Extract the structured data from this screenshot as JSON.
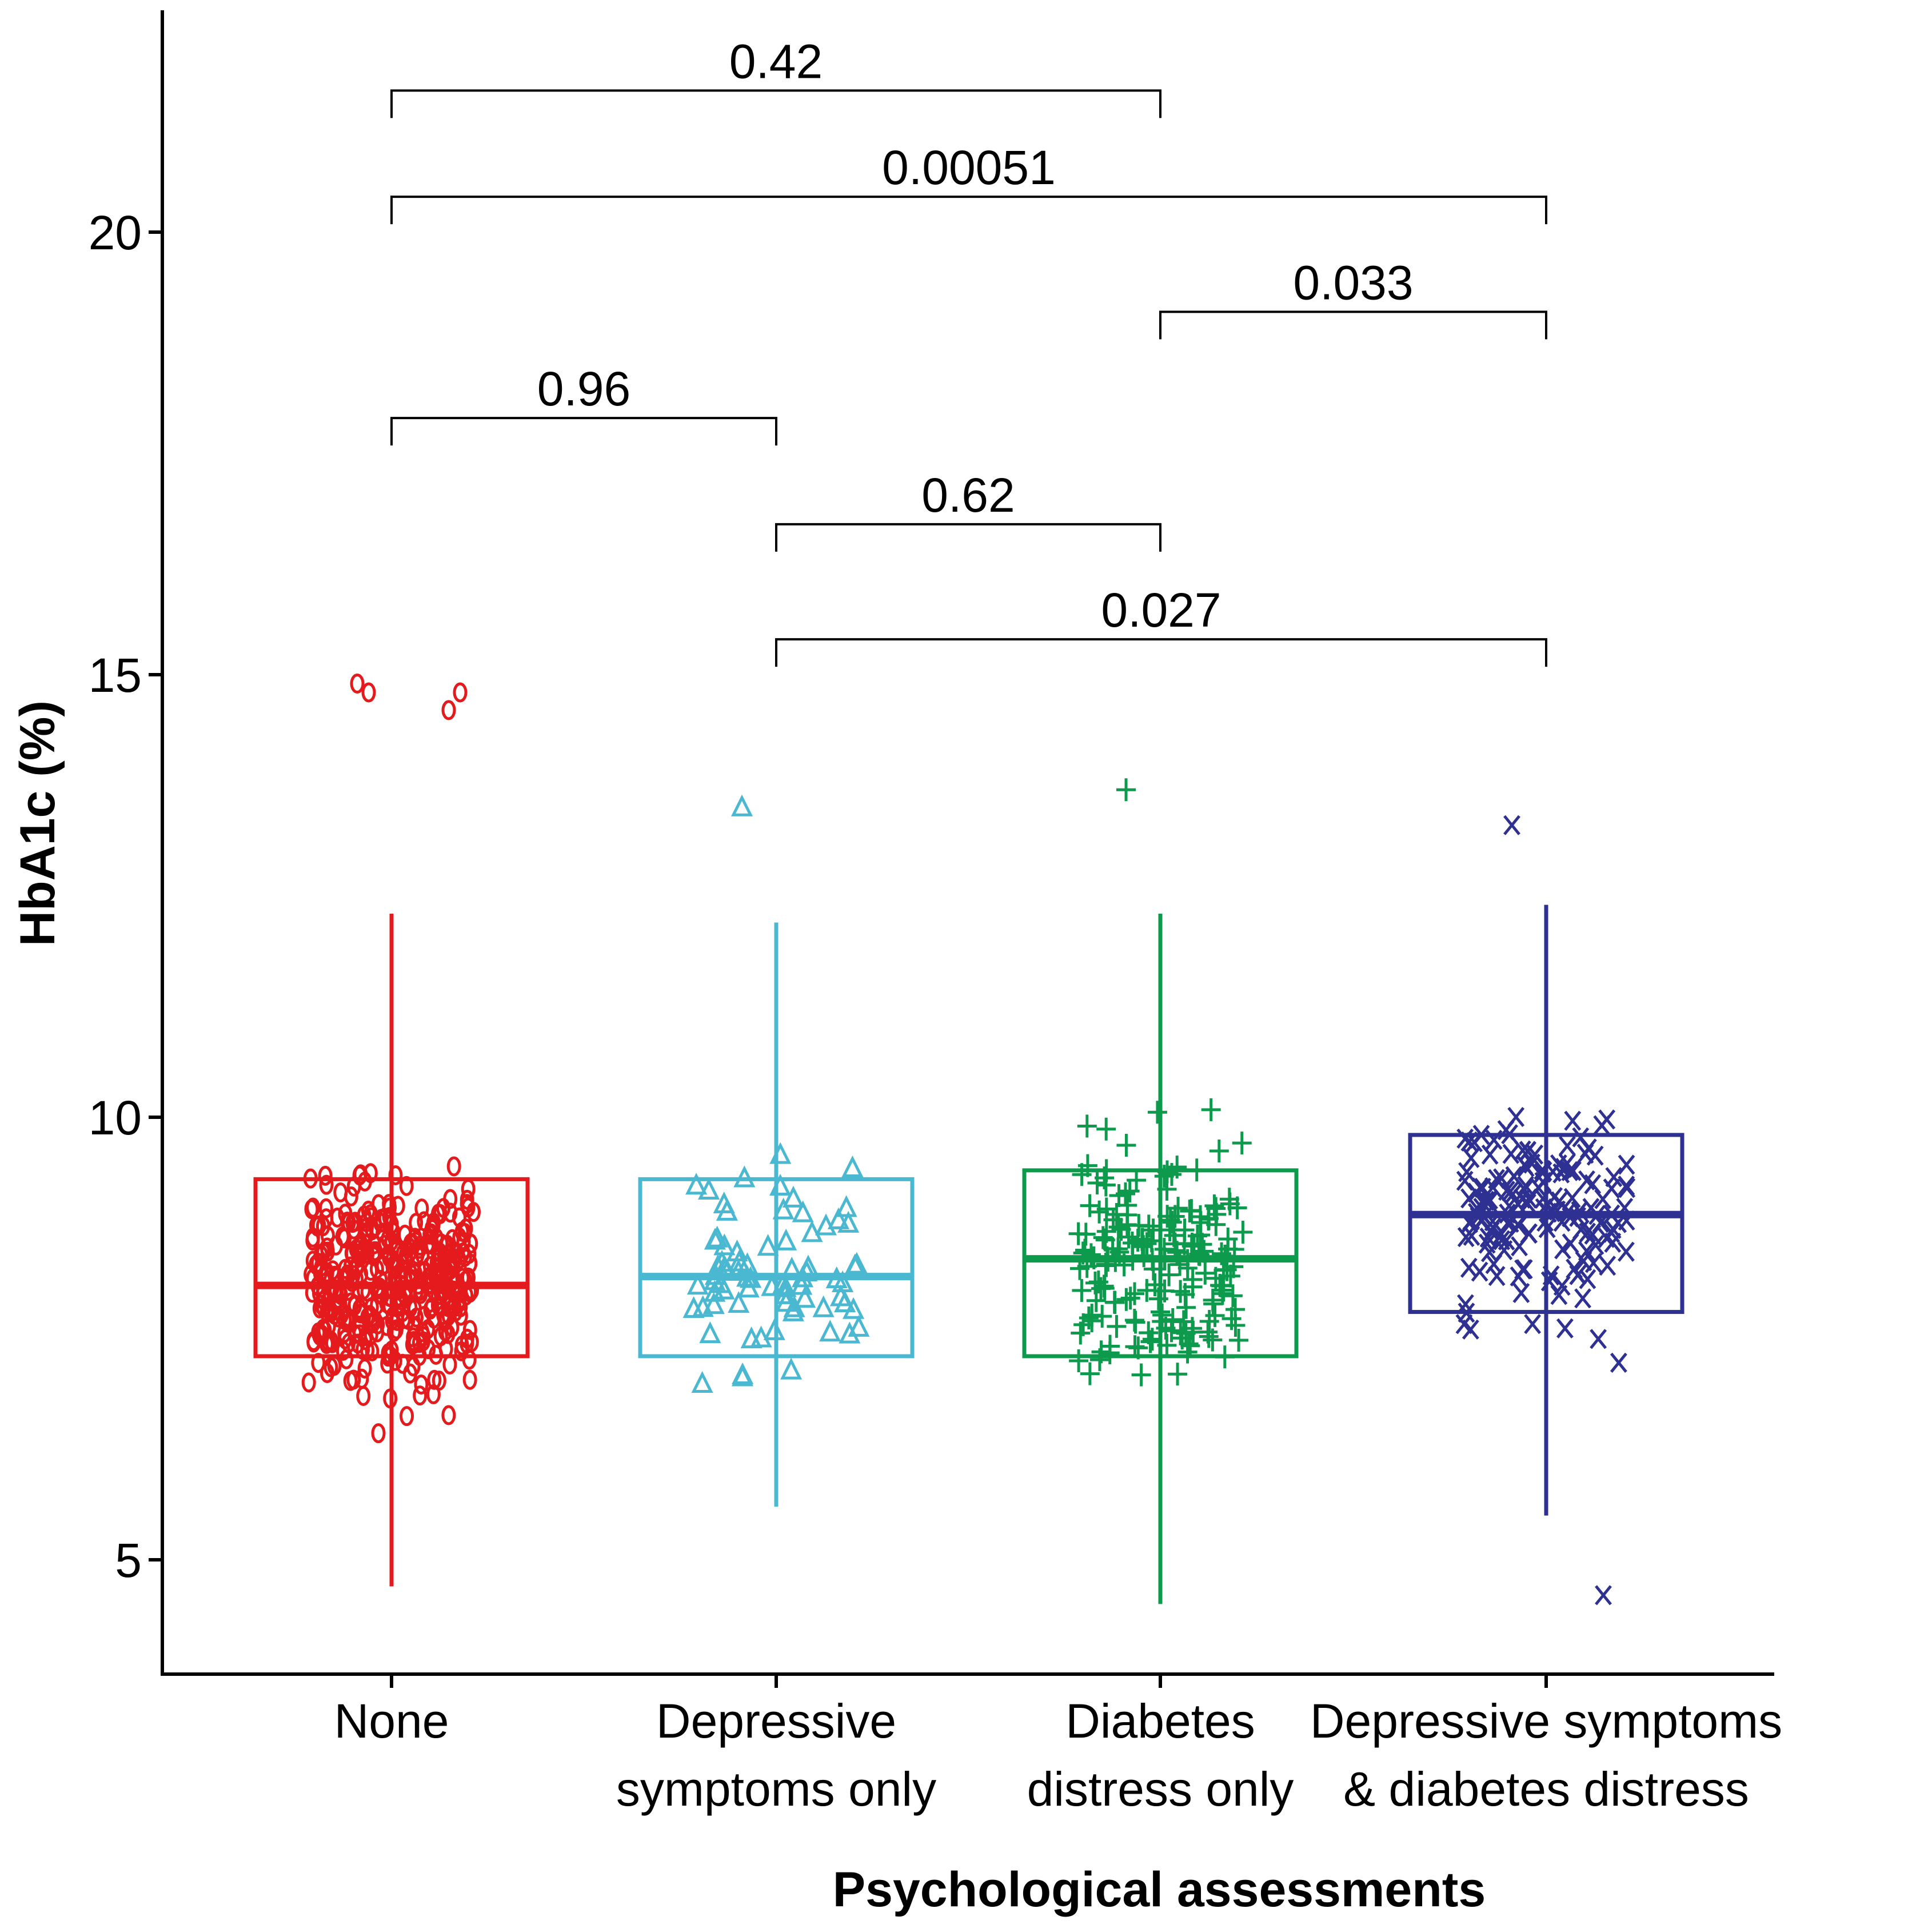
{
  "chart_data": {
    "type": "box",
    "title": "",
    "xlabel": "Psychological assessments",
    "ylabel": "HbA1c (%)",
    "ylim": [
      3.6,
      22.5
    ],
    "yticks": [
      5,
      10,
      15,
      20
    ],
    "ytick_labels": [
      "5",
      "10",
      "15",
      "20"
    ],
    "categories": [
      {
        "name": "None",
        "lines": [
          "None"
        ]
      },
      {
        "name": "Depressive symptoms only",
        "lines": [
          "Depressive",
          "symptoms only"
        ]
      },
      {
        "name": "Diabetes distress only",
        "lines": [
          "Diabetes",
          "distress only"
        ]
      },
      {
        "name": "Depressive symptoms & diabetes distress",
        "lines": [
          "Depressive symptoms",
          "& diabetes distress"
        ]
      }
    ],
    "boxes": [
      {
        "category": "None",
        "color": "#E41A1C",
        "marker": "circle",
        "whisker_low": 4.7,
        "q1": 7.3,
        "median": 8.1,
        "q3": 9.3,
        "whisker_high": 12.3,
        "n_points": 420
      },
      {
        "category": "Depressive symptoms only",
        "color": "#4BB8D2",
        "marker": "triangle",
        "whisker_low": 5.6,
        "q1": 7.3,
        "median": 8.2,
        "q3": 9.3,
        "whisker_high": 12.2,
        "n_points": 75
      },
      {
        "category": "Diabetes distress only",
        "color": "#0E9A4C",
        "marker": "plus",
        "whisker_low": 4.5,
        "q1": 7.3,
        "median": 8.4,
        "q3": 9.4,
        "whisker_high": 12.3,
        "n_points": 200
      },
      {
        "category": "Depressive symptoms & diabetes distress",
        "color": "#2E3192",
        "marker": "x",
        "whisker_low": 5.5,
        "q1": 7.8,
        "median": 8.9,
        "q3": 9.8,
        "whisker_high": 12.4,
        "n_points": 160
      }
    ],
    "outliers": [
      {
        "group": 0,
        "values": [
          14.9,
          14.6,
          14.8,
          14.8
        ]
      },
      {
        "group": 1,
        "values": [
          13.5
        ]
      },
      {
        "group": 2,
        "values": [
          13.7
        ]
      },
      {
        "group": 3,
        "values": [
          13.3,
          4.6
        ]
      }
    ],
    "comparisons": [
      {
        "from": 0,
        "to": 2,
        "label": "0.42",
        "y": 21.6
      },
      {
        "from": 0,
        "to": 3,
        "label": "0.00051",
        "y": 20.4
      },
      {
        "from": 2,
        "to": 3,
        "label": "0.033",
        "y": 19.1
      },
      {
        "from": 0,
        "to": 1,
        "label": "0.96",
        "y": 17.9
      },
      {
        "from": 1,
        "to": 2,
        "label": "0.62",
        "y": 16.7
      },
      {
        "from": 1,
        "to": 3,
        "label": "0.027",
        "y": 15.4
      }
    ]
  }
}
